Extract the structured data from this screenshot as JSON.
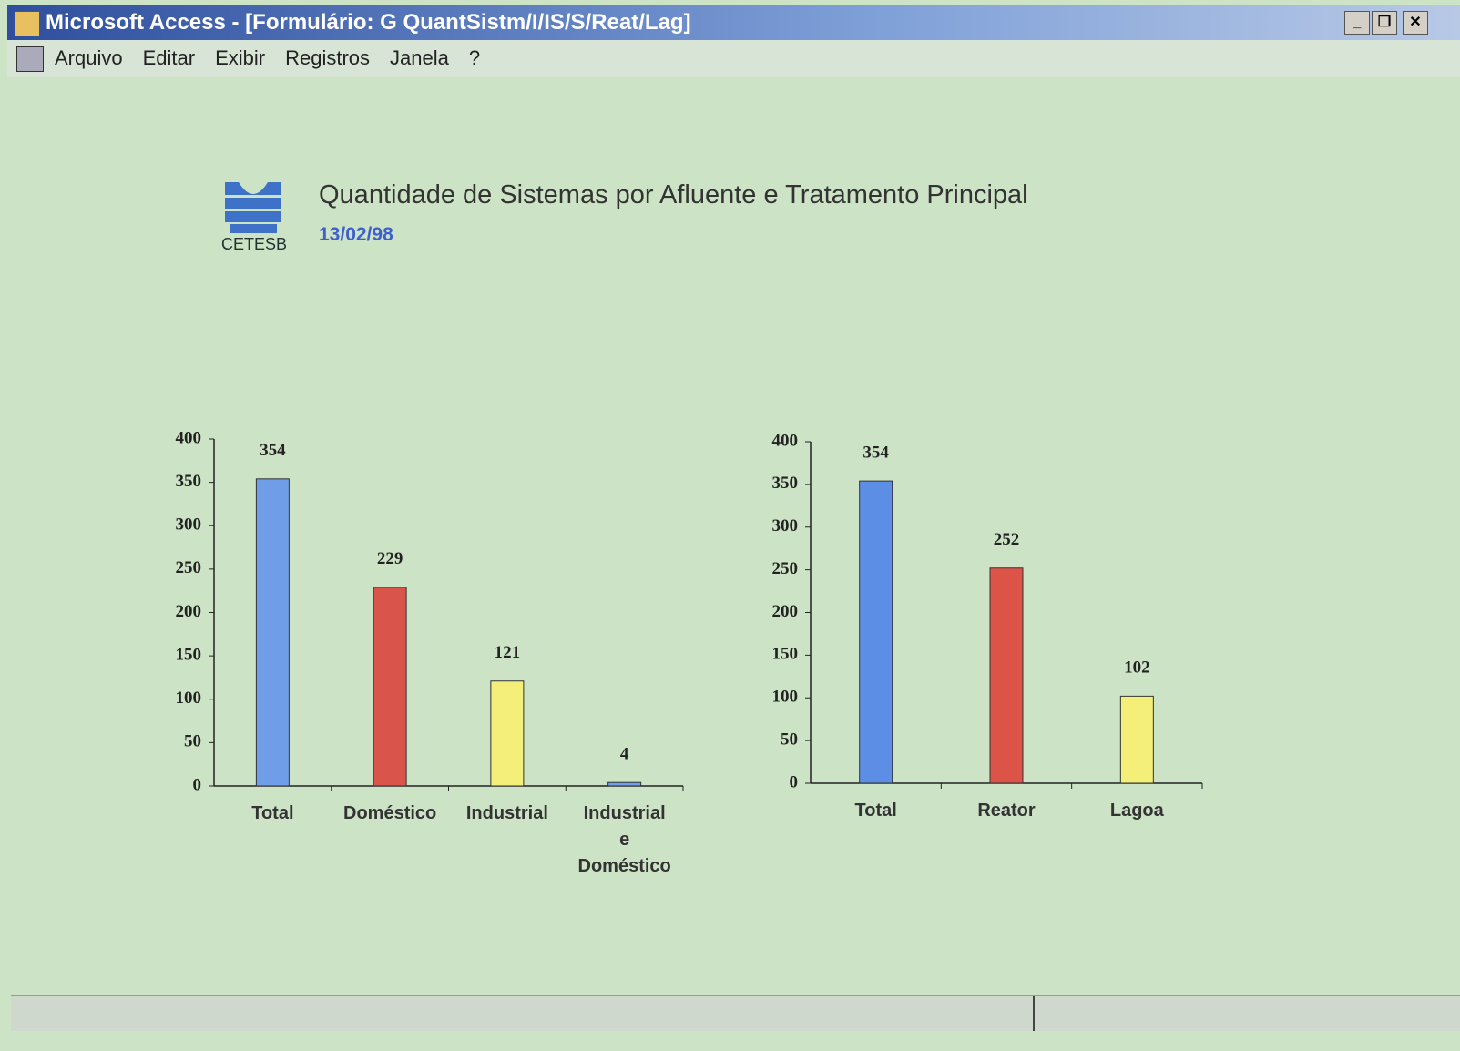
{
  "window": {
    "title": "Microsoft Access - [Formulário: G QuantSistm/I/IS/S/Reat/Lag]"
  },
  "menu": {
    "items": [
      "Arquivo",
      "Editar",
      "Exibir",
      "Registros",
      "Janela",
      "?"
    ]
  },
  "header": {
    "logo": "CETESB",
    "title": "Quantidade de Sistemas por Afluente e Tratamento Principal",
    "date": "13/02/98"
  },
  "chart_data": [
    {
      "type": "bar",
      "categories": [
        "Total",
        "Doméstico",
        "Industrial",
        "Industrial e Doméstico"
      ],
      "values": [
        354,
        229,
        121,
        4
      ],
      "colors": [
        "#6f9de8",
        "#d9554b",
        "#f4ef78",
        "#6f9de8"
      ],
      "ylim": [
        0,
        400
      ],
      "yticks": [
        0,
        50,
        100,
        150,
        200,
        250,
        300,
        350,
        400
      ]
    },
    {
      "type": "bar",
      "categories": [
        "Total",
        "Reator",
        "Lagoa"
      ],
      "values": [
        354,
        252,
        102
      ],
      "colors": [
        "#5d8ee6",
        "#dc5448",
        "#f4ef78"
      ],
      "ylim": [
        0,
        400
      ],
      "yticks": [
        0,
        50,
        100,
        150,
        200,
        250,
        300,
        350,
        400
      ]
    }
  ]
}
